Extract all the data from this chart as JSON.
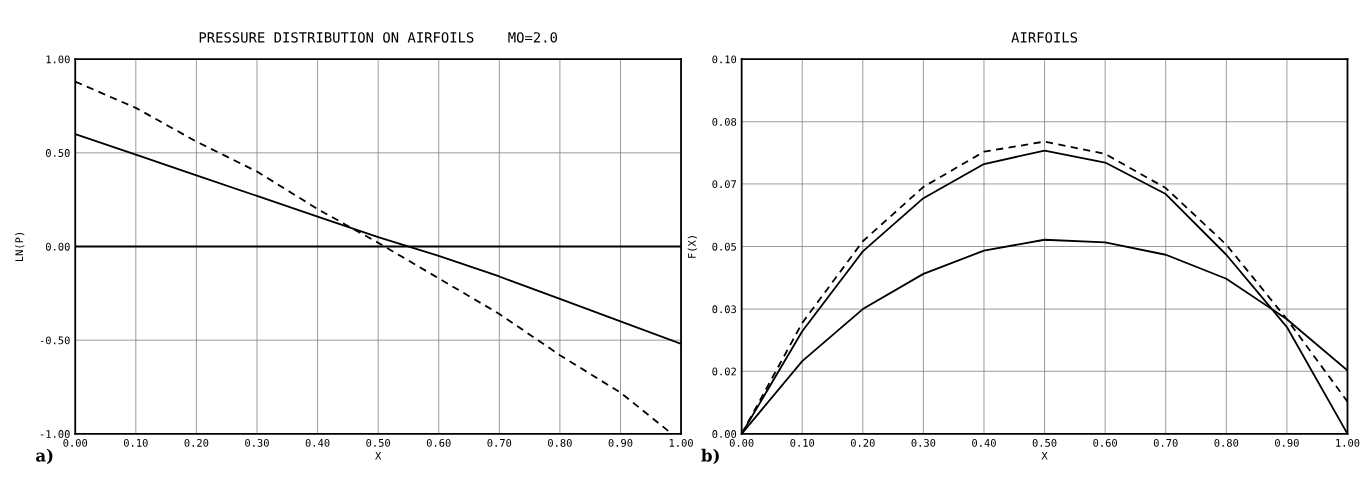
{
  "chart_data": [
    {
      "type": "line",
      "title": "PRESSURE DISTRIBUTION ON AIRFOILS    MO=2.0",
      "xlabel": "X",
      "ylabel": "LN(P)",
      "annotations": [
        "a)"
      ],
      "series": [
        {
          "color": "#000000",
          "line_style": "solid",
          "x": [
            0,
            0.1,
            0.2,
            0.3,
            0.4,
            0.5,
            0.6,
            0.7,
            0.8,
            0.9,
            1.0
          ],
          "values": [
            0.6,
            0.49,
            0.38,
            0.27,
            0.16,
            0.05,
            -0.05,
            -0.16,
            -0.28,
            -0.4,
            -0.52
          ]
        },
        {
          "color": "#000000",
          "line_style": "dashed",
          "x": [
            0,
            0.1,
            0.2,
            0.3,
            0.4,
            0.5,
            0.6,
            0.7,
            0.8,
            0.9,
            0.985
          ],
          "values": [
            0.88,
            0.74,
            0.56,
            0.4,
            0.2,
            0.02,
            -0.17,
            -0.36,
            -0.58,
            -0.78,
            -1.0
          ]
        }
      ],
      "ref_lines": [
        {
          "axis": "y",
          "value": 0,
          "color": "#000000"
        }
      ],
      "xlim": [
        0,
        1
      ],
      "ylim": [
        -1,
        1
      ],
      "xticks": [
        {
          "value": 0,
          "label": "0.00"
        },
        {
          "value": 0.1,
          "label": "0.10"
        },
        {
          "value": 0.2,
          "label": "0.20"
        },
        {
          "value": 0.3,
          "label": "0.30"
        },
        {
          "value": 0.4,
          "label": "0.40"
        },
        {
          "value": 0.5,
          "label": "0.50"
        },
        {
          "value": 0.6,
          "label": "0.60"
        },
        {
          "value": 0.7,
          "label": "0.70"
        },
        {
          "value": 0.8,
          "label": "0.80"
        },
        {
          "value": 0.9,
          "label": "0.90"
        },
        {
          "value": 1,
          "label": "1.00"
        }
      ],
      "yticks": [
        {
          "value": -1,
          "label": "-1.00"
        },
        {
          "value": -0.5,
          "label": "-0.50"
        },
        {
          "value": 0,
          "label": "0.00"
        },
        {
          "value": 0.5,
          "label": "0.50"
        },
        {
          "value": 1,
          "label": "1.00"
        }
      ],
      "grid": true,
      "marker": "none"
    },
    {
      "type": "line",
      "title": "AIRFOILS",
      "xlabel": "X",
      "ylabel": "F(X)",
      "annotations": [
        "b)"
      ],
      "x": [
        0,
        0.1,
        0.2,
        0.3,
        0.4,
        0.5,
        0.6,
        0.7,
        0.8,
        0.9,
        1.0
      ],
      "series": [
        {
          "color": "#000000",
          "line_style": "dashed",
          "values": [
            0,
            0.0296,
            0.0514,
            0.0659,
            0.0753,
            0.078,
            0.0747,
            0.0656,
            0.0505,
            0.0306,
            0.0086
          ]
        },
        {
          "color": "#000000",
          "line_style": "solid",
          "values": [
            0,
            0.0274,
            0.0487,
            0.0629,
            0.072,
            0.0756,
            0.0724,
            0.064,
            0.0478,
            0.0285,
            0
          ]
        },
        {
          "color": "#000000",
          "line_style": "solid",
          "values": [
            0,
            0.0194,
            0.0333,
            0.0427,
            0.0489,
            0.0518,
            0.0511,
            0.0478,
            0.0414,
            0.0306,
            0.0169
          ]
        }
      ],
      "xlim": [
        0,
        1
      ],
      "ylim": [
        0,
        0.1
      ],
      "xticks": [
        {
          "value": 0,
          "label": "0.00"
        },
        {
          "value": 0.1,
          "label": "0.10"
        },
        {
          "value": 0.2,
          "label": "0.20"
        },
        {
          "value": 0.3,
          "label": "0.30"
        },
        {
          "value": 0.4,
          "label": "0.40"
        },
        {
          "value": 0.5,
          "label": "0.50"
        },
        {
          "value": 0.6,
          "label": "0.60"
        },
        {
          "value": 0.7,
          "label": "0.70"
        },
        {
          "value": 0.8,
          "label": "0.80"
        },
        {
          "value": 0.9,
          "label": "0.90"
        },
        {
          "value": 1,
          "label": "1.00"
        }
      ],
      "yticks": [
        {
          "value": 0,
          "label": "0.00"
        },
        {
          "value": 0.0167,
          "label": "0.02"
        },
        {
          "value": 0.0333,
          "label": "0.03"
        },
        {
          "value": 0.05,
          "label": "0.05"
        },
        {
          "value": 0.0667,
          "label": "0.07"
        },
        {
          "value": 0.0833,
          "label": "0.08"
        },
        {
          "value": 0.1,
          "label": "0.10"
        }
      ],
      "grid": true,
      "marker": "none"
    }
  ]
}
